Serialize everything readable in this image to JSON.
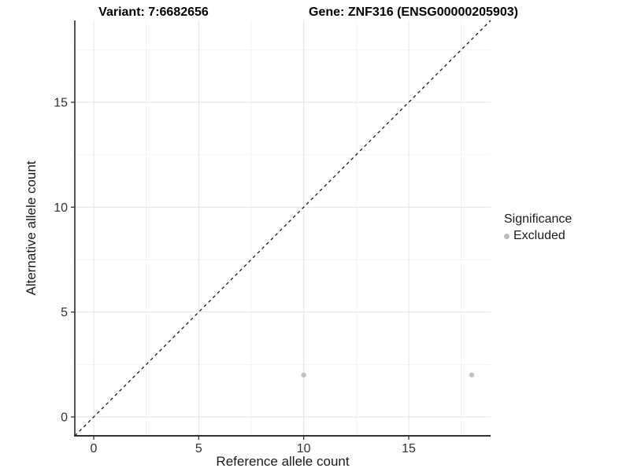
{
  "titles": {
    "variant": "Variant: 7:6682656",
    "gene": "Gene: ZNF316 (ENSG00000205903)"
  },
  "chart_data": {
    "type": "scatter",
    "title_left": "Variant: 7:6682656",
    "title_right": "Gene: ZNF316 (ENSG00000205903)",
    "xlabel": "Reference allele count",
    "ylabel": "Alternative allele count",
    "xlim": [
      -0.9,
      18.9
    ],
    "ylim": [
      -0.9,
      18.9
    ],
    "x_ticks": [
      0,
      5,
      10,
      15
    ],
    "y_ticks": [
      0,
      5,
      10,
      15
    ],
    "x_minor_ticks": [
      2.5,
      7.5,
      12.5,
      17.5
    ],
    "y_minor_ticks": [
      2.5,
      7.5,
      12.5,
      17.5
    ],
    "grid": true,
    "series": [
      {
        "name": "Excluded",
        "color": "#c3c3c3",
        "points": [
          {
            "x": 10,
            "y": 2
          },
          {
            "x": 18,
            "y": 2
          }
        ]
      }
    ],
    "reference_line": {
      "slope": 1,
      "intercept": 0,
      "style": "dashed",
      "color": "#1a1a1a"
    },
    "legend": {
      "title": "Significance",
      "position": "right",
      "items": [
        {
          "label": "Excluded",
          "color": "#bcbcbc"
        }
      ]
    },
    "colors": {
      "panel_background": "#ffffff",
      "grid_major": "#e3e3e3",
      "grid_minor": "#f2f2f2",
      "axis_line": "#333333",
      "tick_label": "#303030"
    }
  }
}
